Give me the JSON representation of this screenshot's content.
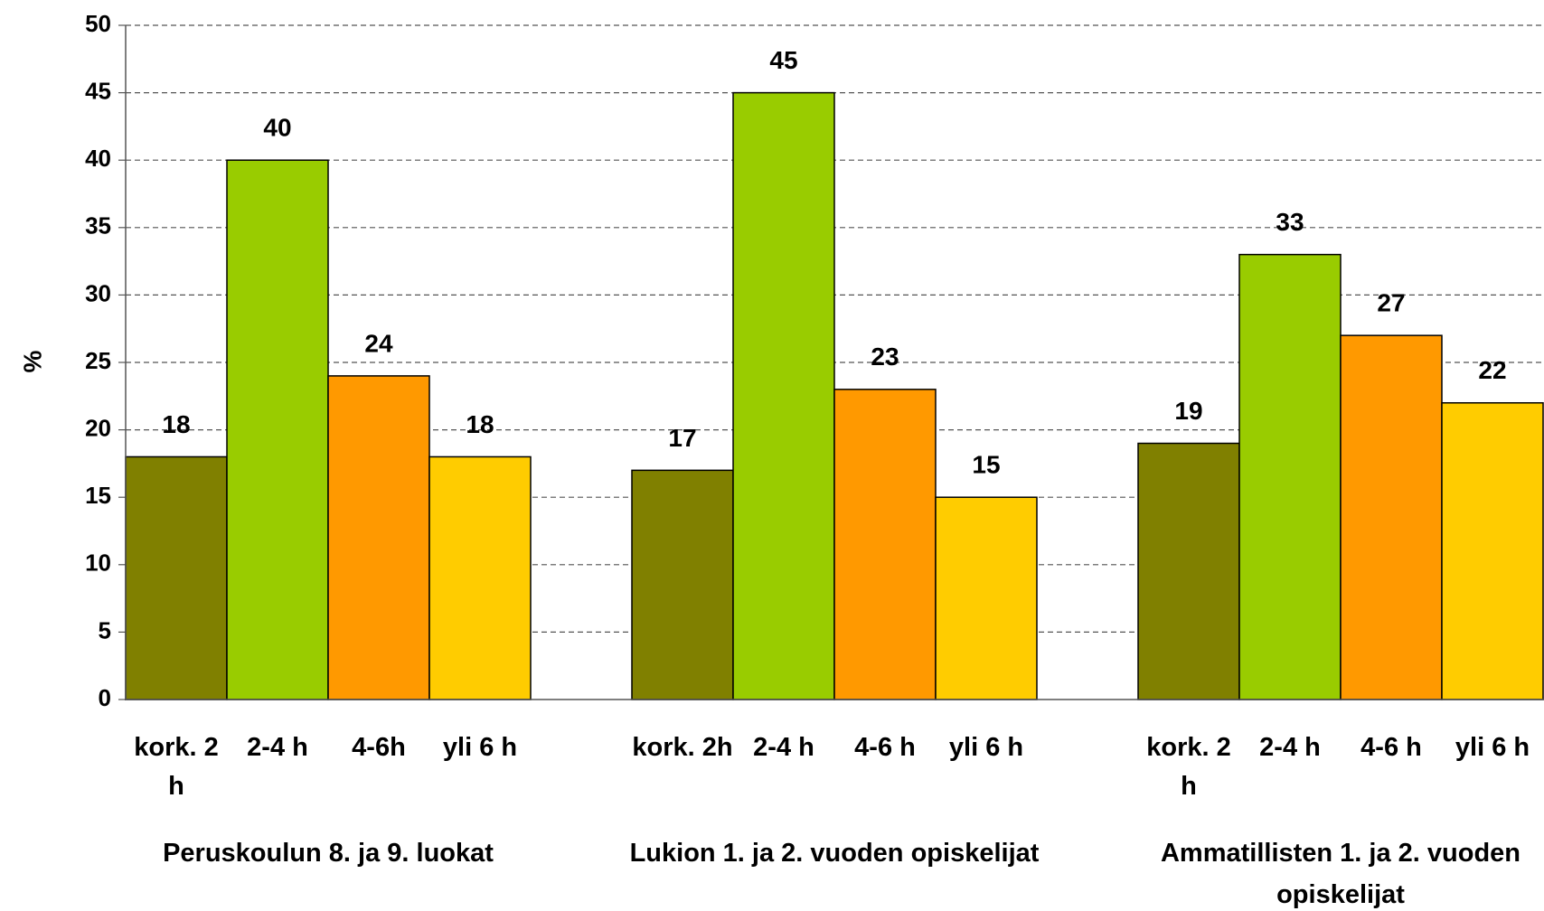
{
  "chart_data": {
    "type": "bar",
    "ylabel": "%",
    "categories": [
      "Peruskoulun 8. ja 9. luokat",
      "Lukion 1. ja 2. vuoden opiskelijat",
      "Ammatillisten 1. ja 2. vuoden opiskelijat"
    ],
    "bar_labels": [
      [
        "kork. 2 h",
        "2-4 h",
        "4-6h",
        "yli 6 h"
      ],
      [
        "kork. 2h",
        "2-4 h",
        "4-6 h",
        "yli 6 h"
      ],
      [
        "kork. 2 h",
        "2-4 h",
        "4-6 h",
        "yli 6 h"
      ]
    ],
    "series": [
      {
        "color": "#808000",
        "values": [
          18,
          17,
          19
        ]
      },
      {
        "color": "#99cc00",
        "values": [
          40,
          45,
          33
        ]
      },
      {
        "color": "#ff9900",
        "values": [
          24,
          23,
          27
        ]
      },
      {
        "color": "#ffcc00",
        "values": [
          18,
          15,
          22
        ]
      }
    ],
    "ylim": [
      0,
      50
    ],
    "yticks": [
      0,
      5,
      10,
      15,
      20,
      25,
      30,
      35,
      40,
      45,
      50
    ],
    "grid": true
  }
}
